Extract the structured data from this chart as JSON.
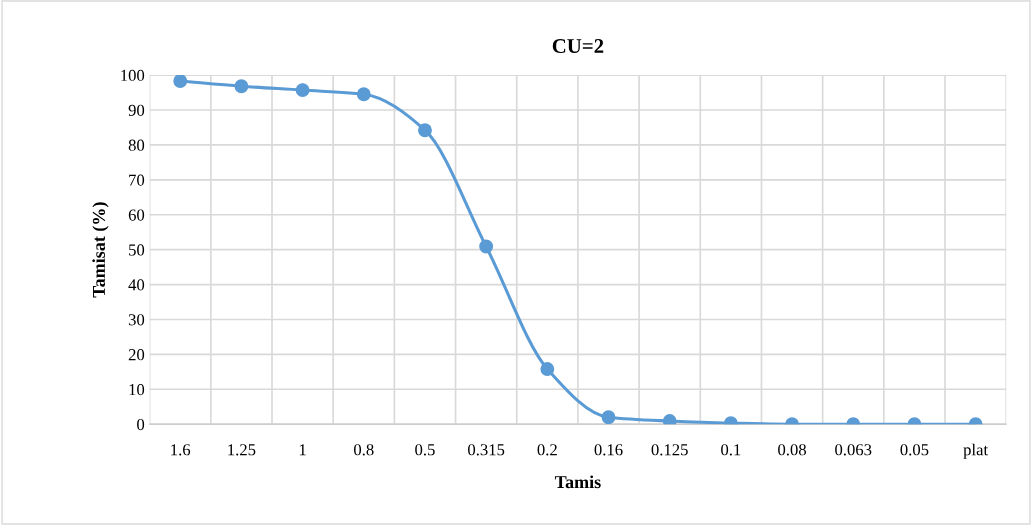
{
  "chart_data": {
    "type": "line",
    "title": "CU=2",
    "xlabel": "Tamis",
    "ylabel": "Tamisat (%)",
    "categories": [
      "1.6",
      "1.25",
      "1",
      "0.8",
      "0.5",
      "0.315",
      "0.2",
      "0.16",
      "0.125",
      "0.1",
      "0.08",
      "0.063",
      "0.05",
      "plat"
    ],
    "series": [
      {
        "color": "#5b9bd5",
        "values": [
          98.3,
          96.8,
          95.7,
          94.5,
          84.2,
          50.9,
          15.8,
          2.0,
          0.9,
          0.3,
          0,
          0,
          0,
          0
        ]
      }
    ],
    "ylim": [
      0,
      100
    ],
    "yticks": [
      0,
      10,
      20,
      30,
      40,
      50,
      60,
      70,
      80,
      90,
      100
    ],
    "grid": true,
    "marker": "circle",
    "line_style": "solid",
    "legend": false
  }
}
